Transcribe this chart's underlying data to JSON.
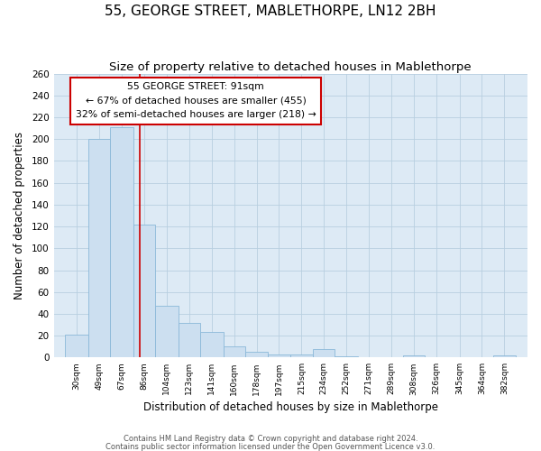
{
  "title": "55, GEORGE STREET, MABLETHORPE, LN12 2BH",
  "subtitle": "Size of property relative to detached houses in Mablethorpe",
  "xlabel": "Distribution of detached houses by size in Mablethorpe",
  "ylabel": "Number of detached properties",
  "footnote1": "Contains HM Land Registry data © Crown copyright and database right 2024.",
  "footnote2": "Contains public sector information licensed under the Open Government Licence v3.0.",
  "annotation_title": "55 GEORGE STREET: 91sqm",
  "annotation_line1": "← 67% of detached houses are smaller (455)",
  "annotation_line2": "32% of semi-detached houses are larger (218) →",
  "bar_color": "#ccdff0",
  "bar_edge_color": "#8ab8d8",
  "redline_color": "#cc0000",
  "bin_edges": [
    30,
    49,
    67,
    86,
    104,
    123,
    141,
    160,
    178,
    197,
    215,
    234,
    252,
    271,
    289,
    308,
    326,
    345,
    364,
    382,
    401
  ],
  "bar_heights": [
    21,
    200,
    211,
    122,
    47,
    32,
    23,
    10,
    5,
    3,
    3,
    8,
    1,
    0,
    0,
    2,
    0,
    0,
    0,
    2
  ],
  "redline_x": 91,
  "ylim": [
    0,
    260
  ],
  "yticks": [
    0,
    20,
    40,
    60,
    80,
    100,
    120,
    140,
    160,
    180,
    200,
    220,
    240,
    260
  ],
  "ax_bg_color": "#ddeaf5",
  "grid_color": "#b8cfe0",
  "title_fontsize": 11,
  "subtitle_fontsize": 9.5
}
